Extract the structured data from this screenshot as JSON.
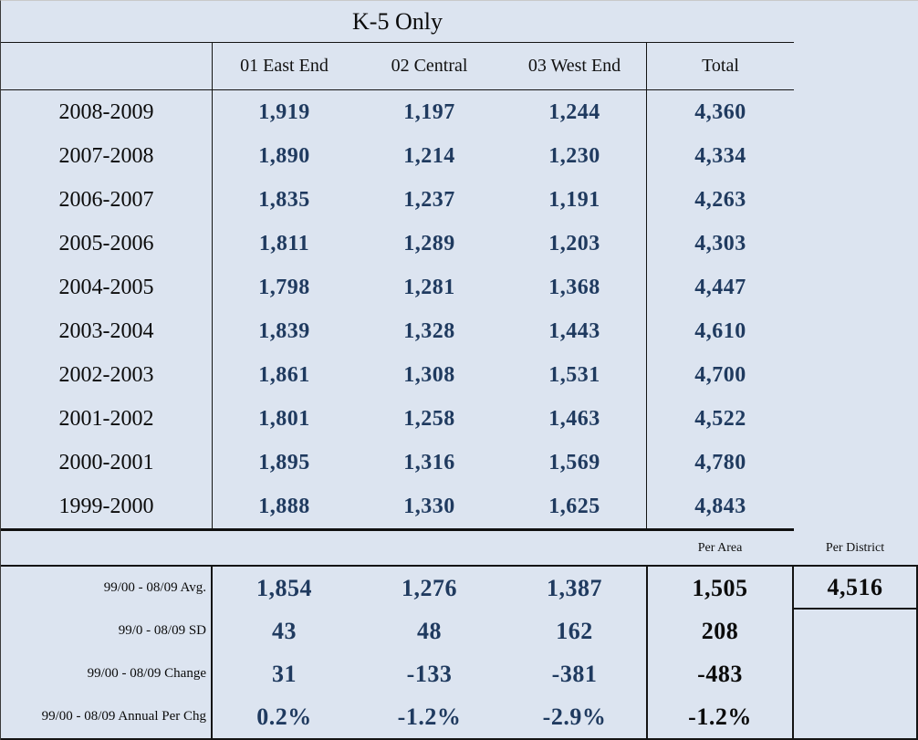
{
  "title": "K-5 Only",
  "columns": [
    "01 East End",
    "02 Central",
    "03 West End",
    "Total"
  ],
  "rows": [
    {
      "year": "2008-2009",
      "values": [
        "1,919",
        "1,197",
        "1,244",
        "4,360"
      ]
    },
    {
      "year": "2007-2008",
      "values": [
        "1,890",
        "1,214",
        "1,230",
        "4,334"
      ]
    },
    {
      "year": "2006-2007",
      "values": [
        "1,835",
        "1,237",
        "1,191",
        "4,263"
      ]
    },
    {
      "year": "2005-2006",
      "values": [
        "1,811",
        "1,289",
        "1,203",
        "4,303"
      ]
    },
    {
      "year": "2004-2005",
      "values": [
        "1,798",
        "1,281",
        "1,368",
        "4,447"
      ]
    },
    {
      "year": "2003-2004",
      "values": [
        "1,839",
        "1,328",
        "1,443",
        "4,610"
      ]
    },
    {
      "year": "2002-2003",
      "values": [
        "1,861",
        "1,308",
        "1,531",
        "4,700"
      ]
    },
    {
      "year": "2001-2002",
      "values": [
        "1,801",
        "1,258",
        "1,463",
        "4,522"
      ]
    },
    {
      "year": "2000-2001",
      "values": [
        "1,895",
        "1,316",
        "1,569",
        "4,780"
      ]
    },
    {
      "year": "1999-2000",
      "values": [
        "1,888",
        "1,330",
        "1,625",
        "4,843"
      ]
    }
  ],
  "summary": {
    "per_area_label": "Per Area",
    "per_district_label": "Per District",
    "rows": [
      {
        "label": "99/00 - 08/09 Avg.",
        "values": [
          "1,854",
          "1,276",
          "1,387"
        ],
        "per_area": "1,505",
        "per_district": "4,516"
      },
      {
        "label": "99/0 - 08/09 SD",
        "values": [
          "43",
          "48",
          "162"
        ],
        "per_area": "208",
        "per_district": ""
      },
      {
        "label": "99/00 - 08/09 Change",
        "values": [
          "31",
          "-133",
          "-381"
        ],
        "per_area": "-483",
        "per_district": ""
      },
      {
        "label": "99/00 - 08/09 Annual Per Chg",
        "values": [
          "0.2%",
          "-1.2%",
          "-2.9%"
        ],
        "per_area": "-1.2%",
        "per_district": ""
      }
    ]
  },
  "colors": {
    "background": "#DCE4F0",
    "value_blue": "#1F3A5F",
    "text_black": "#0B0B0B",
    "line_black": "#141414"
  }
}
